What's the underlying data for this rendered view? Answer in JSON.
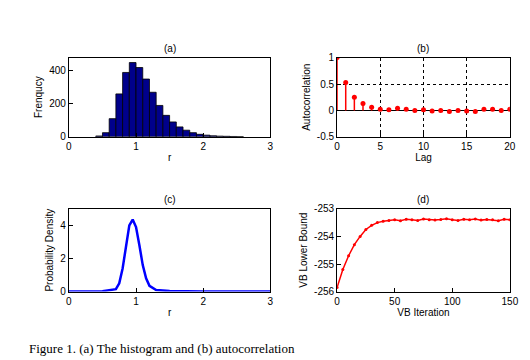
{
  "chart_data": [
    {
      "type": "histogram",
      "title": "(a)",
      "x_label": "r",
      "y_label": "Frenqucy",
      "bins": [
        0.4,
        0.5,
        0.6,
        0.7,
        0.8,
        0.9,
        1.0,
        1.1,
        1.2,
        1.3,
        1.4,
        1.5,
        1.6,
        1.7,
        1.8,
        1.9,
        2.0,
        2.1,
        2.2,
        2.3,
        2.4,
        2.5,
        2.6
      ],
      "counts": [
        5,
        25,
        110,
        260,
        390,
        450,
        420,
        350,
        270,
        190,
        130,
        90,
        60,
        40,
        25,
        15,
        10,
        6,
        4,
        3,
        2,
        1
      ],
      "color": "#00008b",
      "xlim": [
        0,
        3
      ],
      "xticks": [
        0,
        1,
        2,
        3
      ],
      "ylim": [
        0,
        480
      ],
      "yticks": [
        0,
        200,
        400
      ],
      "grid": false
    },
    {
      "type": "stem",
      "title": "(b)",
      "x_label": "Lag",
      "y_label": "Autocorrelation",
      "x": [
        0,
        1,
        2,
        3,
        4,
        5,
        6,
        7,
        8,
        9,
        10,
        11,
        12,
        13,
        14,
        15,
        16,
        17,
        18,
        19,
        20
      ],
      "values": [
        1,
        0.53,
        0.25,
        0.13,
        0.06,
        0.02,
        0.01,
        0.04,
        0.02,
        0.0,
        0.01,
        -0.01,
        0.0,
        -0.02,
        0.0,
        -0.01,
        -0.02,
        0.02,
        0.02,
        0.0,
        0.02
      ],
      "color": "#ff0000",
      "marker": "circle",
      "xlim": [
        0,
        20
      ],
      "xticks": [
        0,
        5,
        10,
        15,
        20
      ],
      "ylim": [
        -0.5,
        1
      ],
      "yticks": [
        -0.5,
        0,
        0.5,
        1
      ],
      "grid": true
    },
    {
      "type": "line",
      "title": "(c)",
      "x_label": "r",
      "y_label": "Probability Density",
      "x": [
        0,
        0.5,
        0.7,
        0.75,
        0.8,
        0.85,
        0.9,
        0.95,
        1.0,
        1.05,
        1.1,
        1.15,
        1.2,
        1.3,
        1.5,
        2,
        3
      ],
      "values": [
        0,
        0.02,
        0.15,
        0.5,
        1.4,
        2.8,
        4.0,
        4.35,
        3.9,
        2.8,
        1.6,
        0.8,
        0.35,
        0.1,
        0.03,
        0.01,
        0
      ],
      "color": "#0000ff",
      "line_style": "solid",
      "xlim": [
        0,
        3
      ],
      "xticks": [
        0,
        1,
        2,
        3
      ],
      "ylim": [
        0,
        5
      ],
      "yticks": [
        0,
        2,
        4
      ],
      "grid": false
    },
    {
      "type": "line",
      "title": "(d)",
      "x_label": "VB Iteration",
      "y_label": "VB Lower Bound",
      "x": [
        0,
        5,
        10,
        15,
        20,
        25,
        30,
        35,
        40,
        45,
        50,
        55,
        60,
        65,
        70,
        75,
        80,
        85,
        90,
        95,
        100,
        105,
        110,
        115,
        120,
        125,
        130,
        135,
        140,
        145,
        150
      ],
      "values": [
        -255.85,
        -255.2,
        -254.7,
        -254.3,
        -254.0,
        -253.75,
        -253.6,
        -253.5,
        -253.45,
        -253.42,
        -253.4,
        -253.43,
        -253.38,
        -253.4,
        -253.42,
        -253.37,
        -253.4,
        -253.41,
        -253.39,
        -253.36,
        -253.4,
        -253.42,
        -253.38,
        -253.4,
        -253.37,
        -253.41,
        -253.39,
        -253.4,
        -253.43,
        -253.38,
        -253.4
      ],
      "color": "#ff0000",
      "line_style": "solid",
      "marker": "circle",
      "xlim": [
        0,
        150
      ],
      "xticks": [
        0,
        50,
        100,
        150
      ],
      "ylim": [
        -256,
        -253
      ],
      "yticks": [
        -256,
        -255,
        -254,
        -253
      ],
      "grid": false
    }
  ],
  "caption": "Figure 1. (a) The histogram and (b) autocorrelation"
}
